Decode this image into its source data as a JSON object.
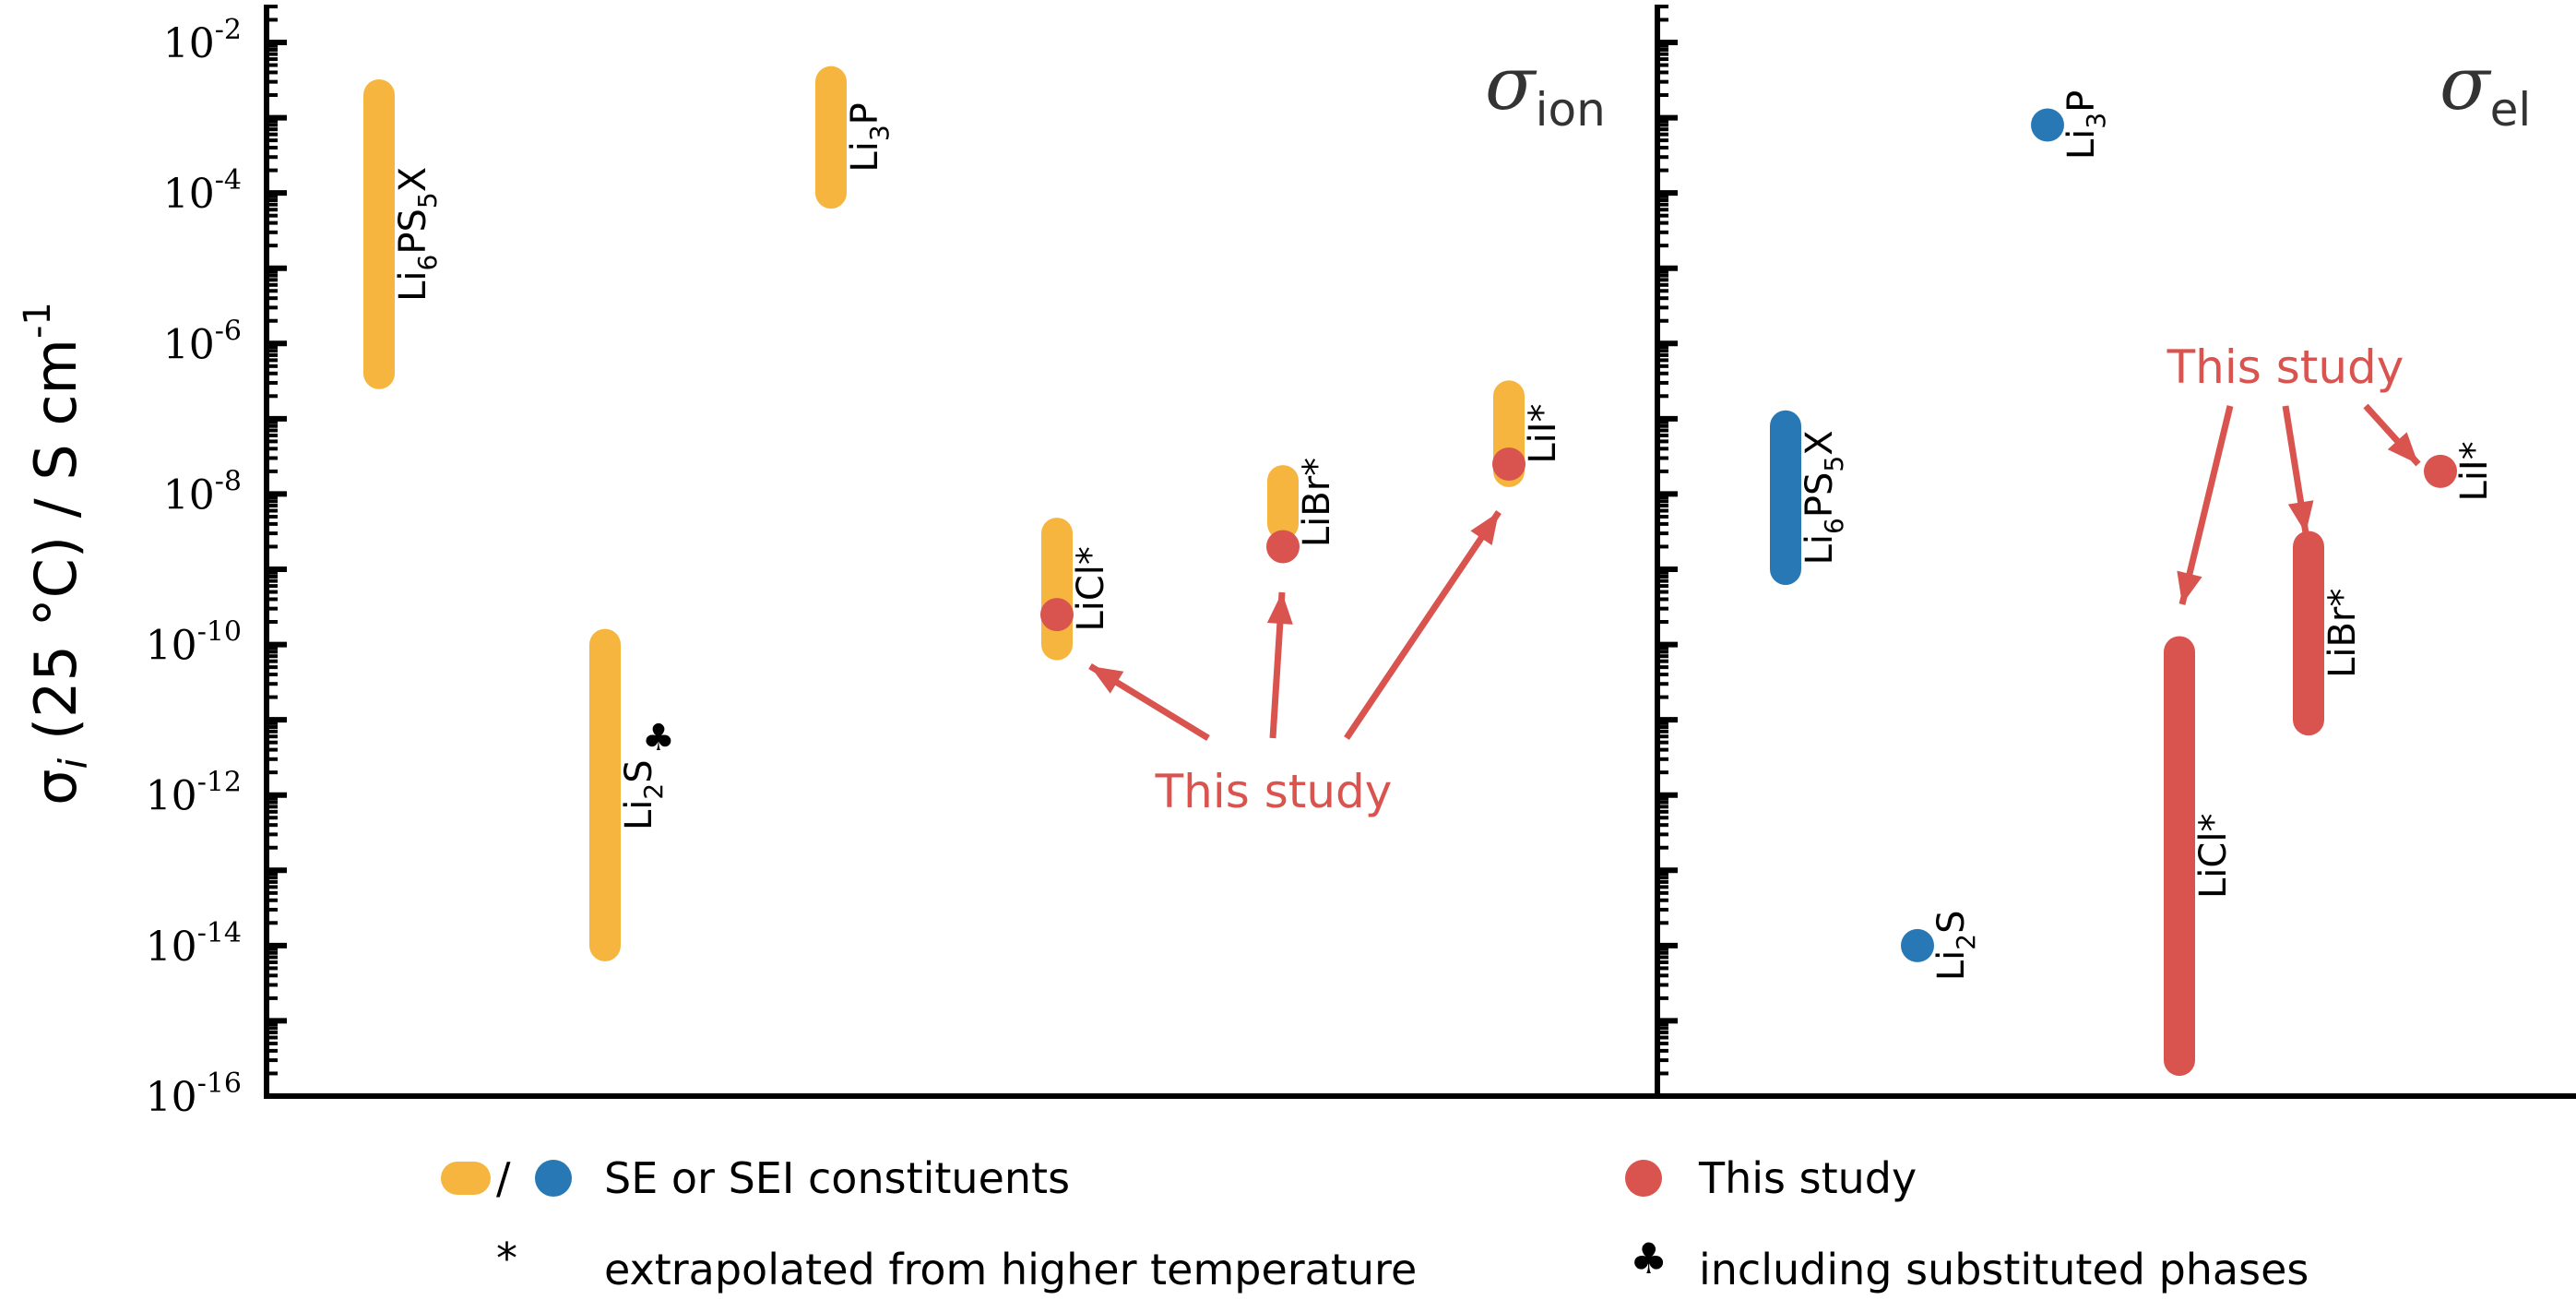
{
  "chart_data": [
    {
      "type": "range",
      "panel": "ion",
      "title": "σ",
      "title_subscript": "ion",
      "ylabel": "σ_i (25 °C) / S cm^-1",
      "yscale": "log",
      "ylim": [
        1e-16,
        0.1
      ],
      "tick_exponents": [
        -16,
        -14,
        -12,
        -10,
        -8,
        -6,
        -4,
        -2
      ],
      "bars": [
        {
          "label": "Li6PS5X",
          "ymin": 4e-07,
          "ymax": 0.002,
          "color": "#F5B53E"
        },
        {
          "label": "Li3P",
          "ymin": 0.0001,
          "ymax": 0.003,
          "color": "#F5B53E"
        },
        {
          "label": "Li2S",
          "ymin": 1e-14,
          "ymax": 1e-10,
          "color": "#F5B53E",
          "mark": "♣"
        },
        {
          "label": "LiCl*",
          "ymin": 1e-10,
          "ymax": 3e-09,
          "color": "#F5B53E"
        },
        {
          "label": "LiBr*",
          "ymin": 4e-09,
          "ymax": 1.5e-08,
          "color": "#F5B53E"
        },
        {
          "label": "LiI*",
          "ymin": 2e-08,
          "ymax": 2e-07,
          "color": "#F5B53E"
        }
      ],
      "points": [
        {
          "label": "LiCl*",
          "y": 2.5e-10,
          "color": "#D9534F"
        },
        {
          "label": "LiBr*",
          "y": 2e-09,
          "color": "#D9534F"
        },
        {
          "label": "LiI*",
          "y": 2.5e-08,
          "color": "#D9534F"
        }
      ],
      "annotation": "This study"
    },
    {
      "type": "range",
      "panel": "el",
      "title": "σ",
      "title_subscript": "el",
      "yscale": "log",
      "ylim": [
        1e-16,
        0.1
      ],
      "bars": [
        {
          "label": "Li6PS5X",
          "ymin": 1e-09,
          "ymax": 8e-08,
          "color": "#2878B5"
        },
        {
          "label": "LiCl*",
          "ymin": 3e-16,
          "ymax": 8e-11,
          "color": "#D9534F"
        },
        {
          "label": "LiBr*",
          "ymin": 1e-11,
          "ymax": 2e-09,
          "color": "#D9534F"
        }
      ],
      "points": [
        {
          "label": "Li3P",
          "y": 0.0008,
          "color": "#2878B5"
        },
        {
          "label": "Li2S",
          "y": 1e-14,
          "color": "#2878B5"
        },
        {
          "label": "LiI*",
          "y": 2e-08,
          "color": "#D9534F"
        }
      ],
      "annotation": "This study"
    }
  ],
  "legend": {
    "slash": "/",
    "se_label": "SE or SEI constituents",
    "study_label": "This study",
    "asterisk_symbol": "*",
    "asterisk_label": "extrapolated from higher temperature",
    "club_symbol": "♣",
    "club_label": "including substituted phases",
    "colors": {
      "orange": "#F5B53E",
      "blue": "#2878B5",
      "red": "#D9534F"
    }
  }
}
